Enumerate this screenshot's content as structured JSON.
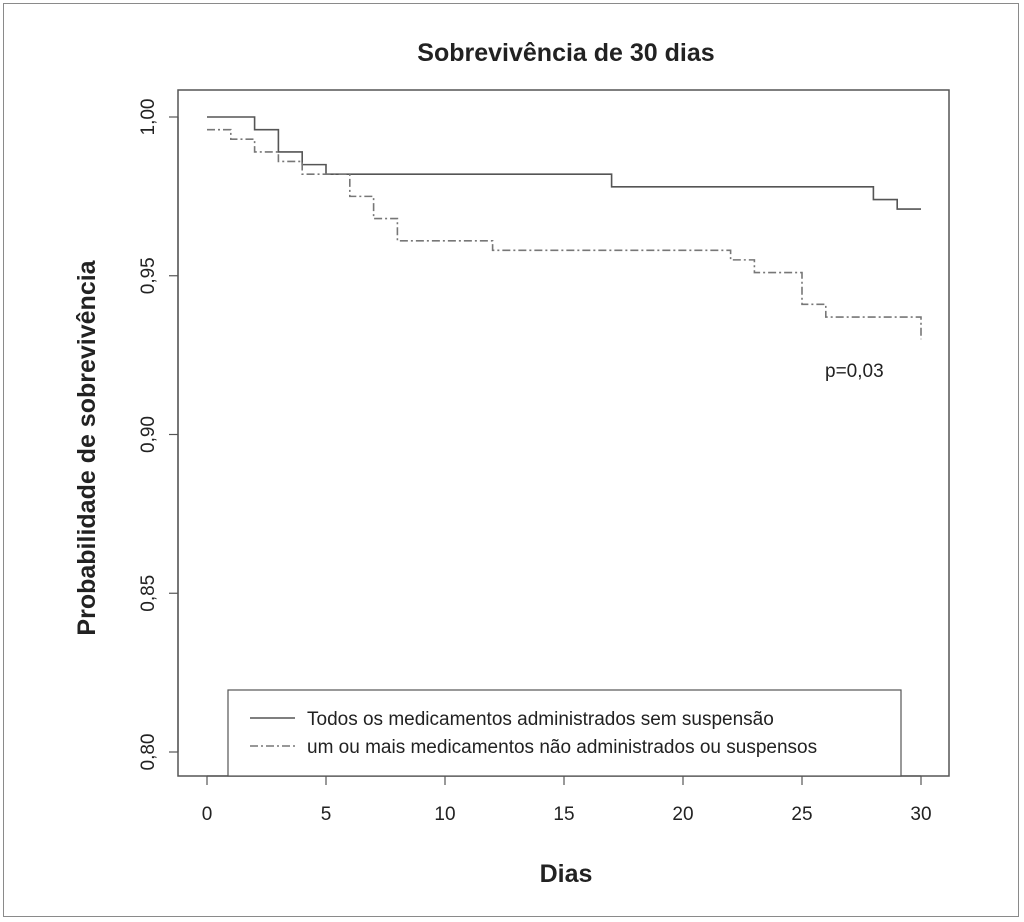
{
  "chart_data": {
    "type": "line",
    "title": "Sobrevivência de 30 dias",
    "xlabel": "Dias",
    "ylabel": "Probabilidade de sobrevivência",
    "xlim": [
      0,
      30
    ],
    "ylim": [
      0.8,
      1.0
    ],
    "x_ticks": [
      0,
      5,
      10,
      15,
      20,
      25,
      30
    ],
    "x_tick_labels": [
      "0",
      "5",
      "10",
      "15",
      "20",
      "25",
      "30"
    ],
    "y_ticks": [
      0.8,
      0.85,
      0.9,
      0.95,
      1.0
    ],
    "y_tick_labels": [
      "0,80",
      "0,85",
      "0,90",
      "0,95",
      "1,00"
    ],
    "grid": false,
    "legend_position": "bottom",
    "annotation": "p=0,03",
    "series": [
      {
        "name": "Todos os medicamentos administrados sem suspensão",
        "style": "solid",
        "color": "#555555",
        "x": [
          0,
          2,
          3,
          4,
          5,
          17,
          28,
          29,
          30
        ],
        "y": [
          1.0,
          0.996,
          0.989,
          0.985,
          0.982,
          0.978,
          0.974,
          0.971,
          0.971
        ]
      },
      {
        "name": "um ou mais medicamentos não administrados ou suspensos",
        "style": "dashdot",
        "color": "#777777",
        "x": [
          0,
          1,
          2,
          3,
          4,
          6,
          7,
          8,
          12,
          22,
          23,
          25,
          26,
          30
        ],
        "y": [
          0.996,
          0.993,
          0.989,
          0.986,
          0.982,
          0.975,
          0.968,
          0.961,
          0.958,
          0.955,
          0.951,
          0.941,
          0.937,
          0.93
        ]
      }
    ]
  }
}
